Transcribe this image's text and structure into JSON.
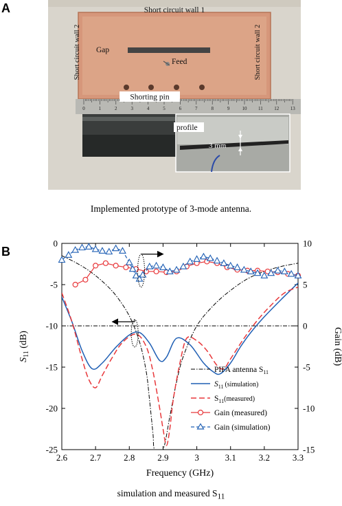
{
  "panel_a": {
    "letter": "A",
    "labels": {
      "wall1": "Short circuit wall 1",
      "wall2_left": "Short circuit wall 2",
      "wall2_right": "Short circuit wall 2",
      "gap": "Gap",
      "feed": "Feed",
      "pin": "Shorting pin",
      "profile": "profile",
      "thickness": "3 mm"
    },
    "ruler_ticks": [
      "0",
      "1",
      "2",
      "3",
      "4",
      "5",
      "6",
      "7",
      "8",
      "9",
      "10",
      "11",
      "12",
      "13"
    ],
    "caption": "Implemented prototype of 3-mode antenna."
  },
  "panel_b": {
    "letter": "B",
    "caption_prefix": "simulation and measured S",
    "caption_sub": "11"
  },
  "chart_data": {
    "type": "line",
    "xlabel": "Frequency (GHz)",
    "ylabel_left_main": "S",
    "ylabel_left_sub": "11",
    "ylabel_left_unit": " (dB)",
    "ylabel_right": "Gain (dB)",
    "xlim": [
      2.6,
      3.3
    ],
    "ylim_left": [
      -25,
      0
    ],
    "ylim_right": [
      -15,
      10
    ],
    "x_ticks": [
      "2.6",
      "2.7",
      "2.8",
      "2.9",
      "3",
      "3.1",
      "3.2",
      "3.3"
    ],
    "y_left_ticks": [
      "0",
      "-5",
      "-10",
      "-15",
      "-20",
      "-25"
    ],
    "y_right_ticks": [
      "10",
      "5",
      "0",
      "-5",
      "-10",
      "-15"
    ],
    "reference_line_left": -10,
    "legend": {
      "position": "bottom-right",
      "entries": {
        "pifa": "PIFA antenna S",
        "pifa_sub": "11",
        "sim_main": "S",
        "sim_sub": "11",
        "sim_rest": "(simulation)",
        "meas_main": "S",
        "meas_sub": "11",
        "meas_rest": "(measured)",
        "gain_meas": "Gain (measured)",
        "gain_sim": "Gain (simulation)"
      }
    },
    "colors": {
      "sim": "#1f5fb4",
      "meas": "#e8373a",
      "pifa": "#000000"
    },
    "series": [
      {
        "key": "pifa",
        "axis": "left",
        "x": [
          2.6,
          2.64,
          2.68,
          2.72,
          2.76,
          2.8,
          2.83,
          2.85,
          2.86,
          2.87,
          2.875,
          2.9,
          2.92,
          2.94,
          2.96,
          3.0,
          3.05,
          3.1,
          3.15,
          3.2,
          3.25,
          3.3
        ],
        "y": [
          -1.5,
          -2.3,
          -3.3,
          -4.6,
          -6.3,
          -8.8,
          -11.9,
          -15.5,
          -19,
          -23,
          -25,
          -25,
          -21,
          -16.8,
          -13.7,
          -10,
          -7.5,
          -5.7,
          -4.3,
          -3.4,
          -2.8,
          -2.4
        ]
      },
      {
        "key": "sim",
        "axis": "left",
        "x": [
          2.6,
          2.63,
          2.66,
          2.69,
          2.72,
          2.76,
          2.8,
          2.83,
          2.86,
          2.89,
          2.91,
          2.94,
          2.98,
          3.02,
          3.05,
          3.07,
          3.1,
          3.13,
          3.16,
          3.2,
          3.25,
          3.3
        ],
        "y": [
          -6.5,
          -9.5,
          -13,
          -15.2,
          -14.5,
          -12.6,
          -11.1,
          -10.8,
          -12.1,
          -14.2,
          -13.8,
          -11.5,
          -12.3,
          -14.5,
          -15.6,
          -15.8,
          -14.5,
          -12.5,
          -10.8,
          -8.9,
          -6.8,
          -4.8
        ]
      },
      {
        "key": "meas",
        "axis": "left",
        "x": [
          2.6,
          2.63,
          2.66,
          2.68,
          2.7,
          2.72,
          2.75,
          2.78,
          2.82,
          2.85,
          2.87,
          2.89,
          2.9,
          2.91,
          2.92,
          2.93,
          2.95,
          2.97,
          3.0,
          3.03,
          3.06,
          3.08,
          3.1,
          3.14,
          3.18,
          3.22,
          3.26,
          3.3
        ],
        "y": [
          -6,
          -9.5,
          -14,
          -16.5,
          -17.5,
          -16,
          -13.8,
          -12,
          -11,
          -12.5,
          -15.5,
          -20,
          -22.5,
          -24.5,
          -22.5,
          -19,
          -14.5,
          -11.5,
          -11.8,
          -13,
          -14.8,
          -15.2,
          -14,
          -11.5,
          -9.3,
          -7.5,
          -6,
          -5.3
        ]
      },
      {
        "key": "gain_meas",
        "axis": "right",
        "markers": "circle",
        "x": [
          2.64,
          2.67,
          2.7,
          2.73,
          2.76,
          2.79,
          2.82,
          2.85,
          2.88,
          2.91,
          2.94,
          2.97,
          3.0,
          3.03,
          3.06,
          3.09,
          3.12,
          3.15,
          3.18,
          3.21,
          3.24,
          3.27,
          3.3
        ],
        "y": [
          5,
          5.6,
          7.3,
          7.6,
          7.3,
          7.1,
          6.9,
          6.6,
          6.6,
          6.5,
          6.6,
          7.2,
          7.6,
          7.8,
          7.6,
          7.1,
          6.8,
          6.7,
          6.7,
          6.6,
          6.5,
          6.3,
          6.1
        ]
      },
      {
        "key": "gain_sim",
        "axis": "right",
        "markers": "triangle",
        "x": [
          2.6,
          2.62,
          2.64,
          2.66,
          2.68,
          2.7,
          2.72,
          2.74,
          2.76,
          2.78,
          2.8,
          2.81,
          2.82,
          2.83,
          2.84,
          2.86,
          2.88,
          2.9,
          2.92,
          2.94,
          2.96,
          2.98,
          3.0,
          3.02,
          3.04,
          3.06,
          3.08,
          3.1,
          3.12,
          3.14,
          3.16,
          3.18,
          3.2,
          3.22,
          3.24,
          3.26,
          3.28,
          3.3
        ],
        "y": [
          8,
          8.6,
          9.2,
          9.5,
          9.6,
          9.3,
          9.1,
          9,
          9.4,
          9.1,
          7.7,
          6.9,
          6.1,
          5.7,
          6.2,
          7.2,
          7.3,
          7.1,
          6.6,
          6.8,
          7.2,
          7.8,
          8.1,
          8.4,
          8.2,
          7.9,
          7.6,
          7.3,
          7.1,
          6.8,
          6.6,
          6.4,
          6.1,
          6.4,
          6.7,
          6.6,
          6.3,
          6.1
        ]
      }
    ]
  }
}
